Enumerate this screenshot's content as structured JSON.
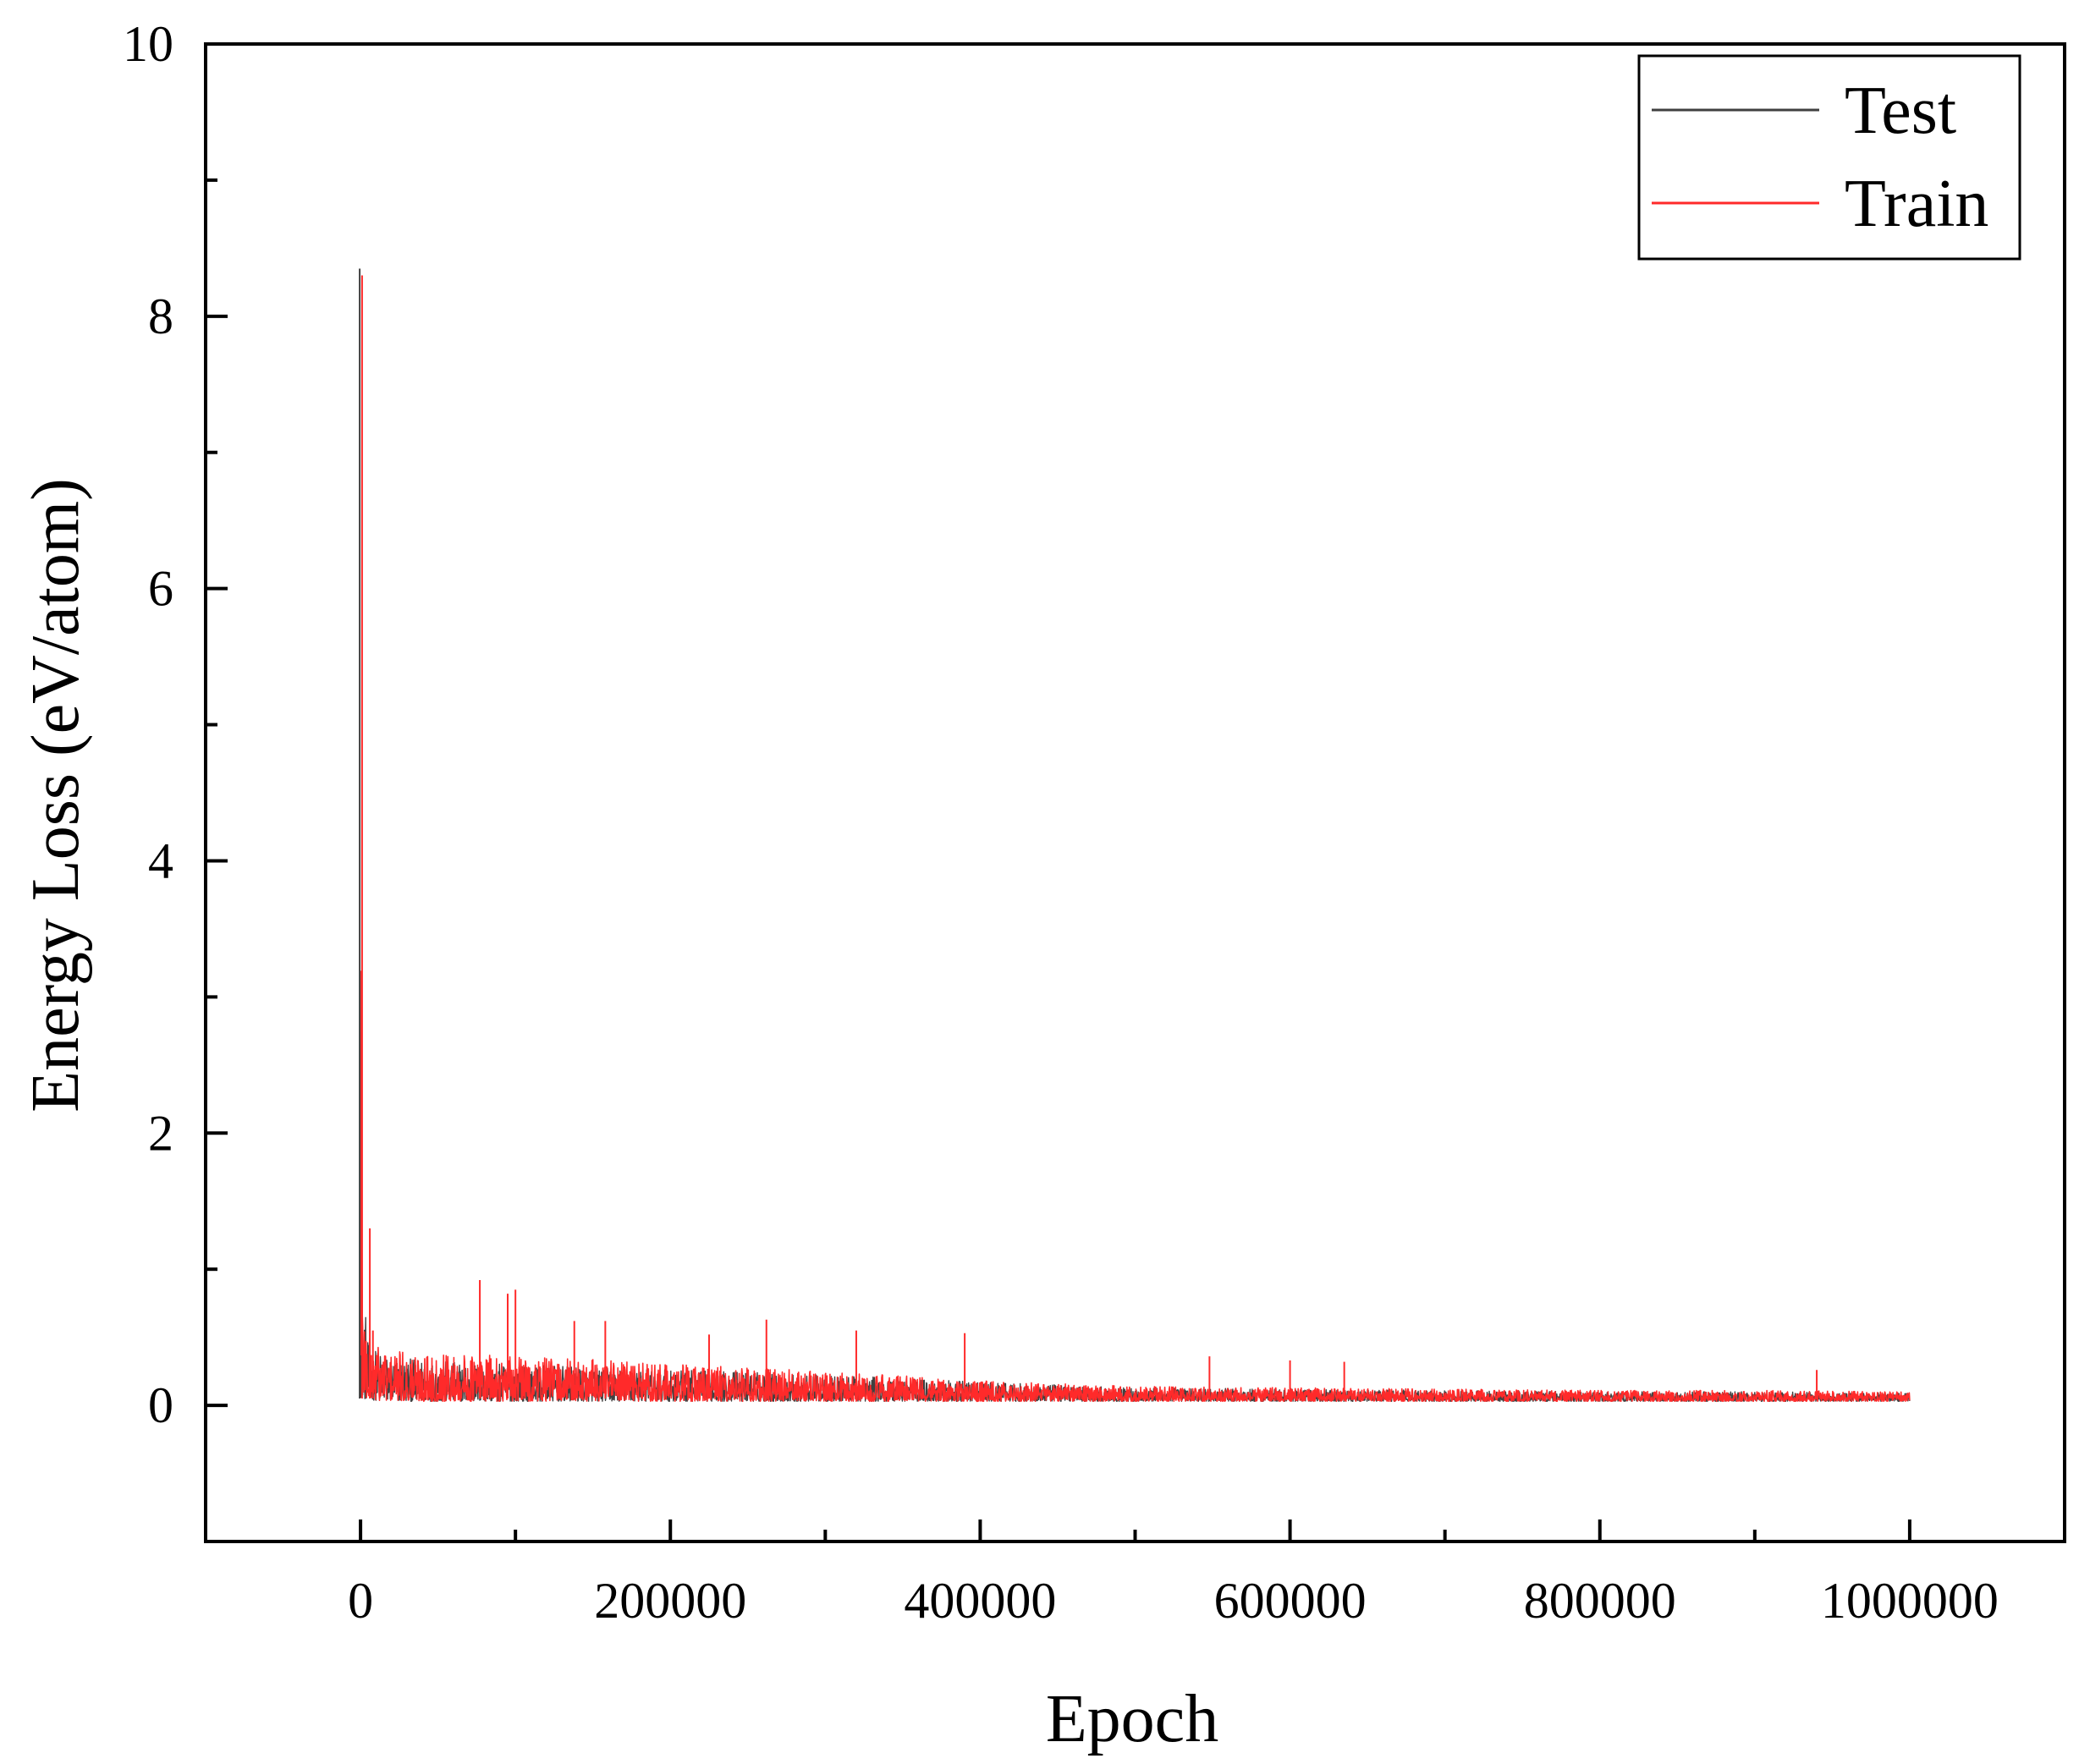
{
  "chart_data": {
    "type": "line",
    "title": "",
    "xlabel": "Epoch",
    "ylabel": "Energy Loss (eV/atom)",
    "xlim": [
      -100000,
      1100000
    ],
    "ylim": [
      -1,
      10
    ],
    "x_ticks": [
      0,
      200000,
      400000,
      600000,
      800000,
      1000000
    ],
    "x_tick_labels": [
      "0",
      "200000",
      "400000",
      "600000",
      "800000",
      "1000000"
    ],
    "x_minor_ticks": [
      100000,
      300000,
      500000,
      700000,
      900000
    ],
    "y_ticks": [
      0,
      2,
      4,
      6,
      8,
      10
    ],
    "y_tick_labels": [
      "0",
      "2",
      "4",
      "6",
      "8",
      "10"
    ],
    "y_minor_ticks": [
      1,
      3,
      5,
      7,
      9
    ],
    "grid": false,
    "legend": {
      "position": "top-right"
    },
    "series": [
      {
        "name": "Test",
        "color": "#404040",
        "envelope": {
          "x": [
            0,
            1000,
            5000,
            20000,
            60000,
            100000,
            150000,
            200000,
            250000,
            300000,
            350000,
            400000,
            450000,
            500000,
            600000,
            700000,
            800000,
            900000,
            1000000
          ],
          "low": [
            0.05,
            0.05,
            0.04,
            0.03,
            0.03,
            0.03,
            0.03,
            0.03,
            0.03,
            0.03,
            0.03,
            0.03,
            0.03,
            0.03,
            0.03,
            0.03,
            0.03,
            0.03,
            0.03
          ],
          "high": [
            8.35,
            1.0,
            0.45,
            0.35,
            0.32,
            0.3,
            0.28,
            0.26,
            0.25,
            0.22,
            0.2,
            0.17,
            0.15,
            0.13,
            0.12,
            0.11,
            0.1,
            0.1,
            0.09
          ]
        }
      },
      {
        "name": "Train",
        "color": "#ff2a2a",
        "envelope": {
          "x": [
            0,
            1000,
            5000,
            20000,
            60000,
            100000,
            150000,
            200000,
            250000,
            300000,
            350000,
            400000,
            450000,
            500000,
            600000,
            700000,
            800000,
            900000,
            1000000
          ],
          "low": [
            0.05,
            0.05,
            0.04,
            0.03,
            0.03,
            0.03,
            0.03,
            0.03,
            0.03,
            0.03,
            0.03,
            0.03,
            0.03,
            0.03,
            0.03,
            0.03,
            0.03,
            0.03,
            0.03
          ],
          "high": [
            8.3,
            1.0,
            0.5,
            0.4,
            0.38,
            0.36,
            0.34,
            0.3,
            0.28,
            0.25,
            0.22,
            0.18,
            0.16,
            0.14,
            0.13,
            0.12,
            0.11,
            0.11,
            0.1
          ]
        },
        "spikes": [
          {
            "x": 1000,
            "y": 8.3
          },
          {
            "x": 6000,
            "y": 1.3
          },
          {
            "x": 8000,
            "y": 0.55
          },
          {
            "x": 77000,
            "y": 0.92
          },
          {
            "x": 95000,
            "y": 0.82
          },
          {
            "x": 100000,
            "y": 0.85
          },
          {
            "x": 138000,
            "y": 0.62
          },
          {
            "x": 158000,
            "y": 0.62
          },
          {
            "x": 225000,
            "y": 0.52
          },
          {
            "x": 262000,
            "y": 0.63
          },
          {
            "x": 320000,
            "y": 0.55
          },
          {
            "x": 390000,
            "y": 0.53
          },
          {
            "x": 548000,
            "y": 0.36
          },
          {
            "x": 600000,
            "y": 0.33
          },
          {
            "x": 635000,
            "y": 0.32
          },
          {
            "x": 940000,
            "y": 0.26
          }
        ]
      }
    ]
  }
}
